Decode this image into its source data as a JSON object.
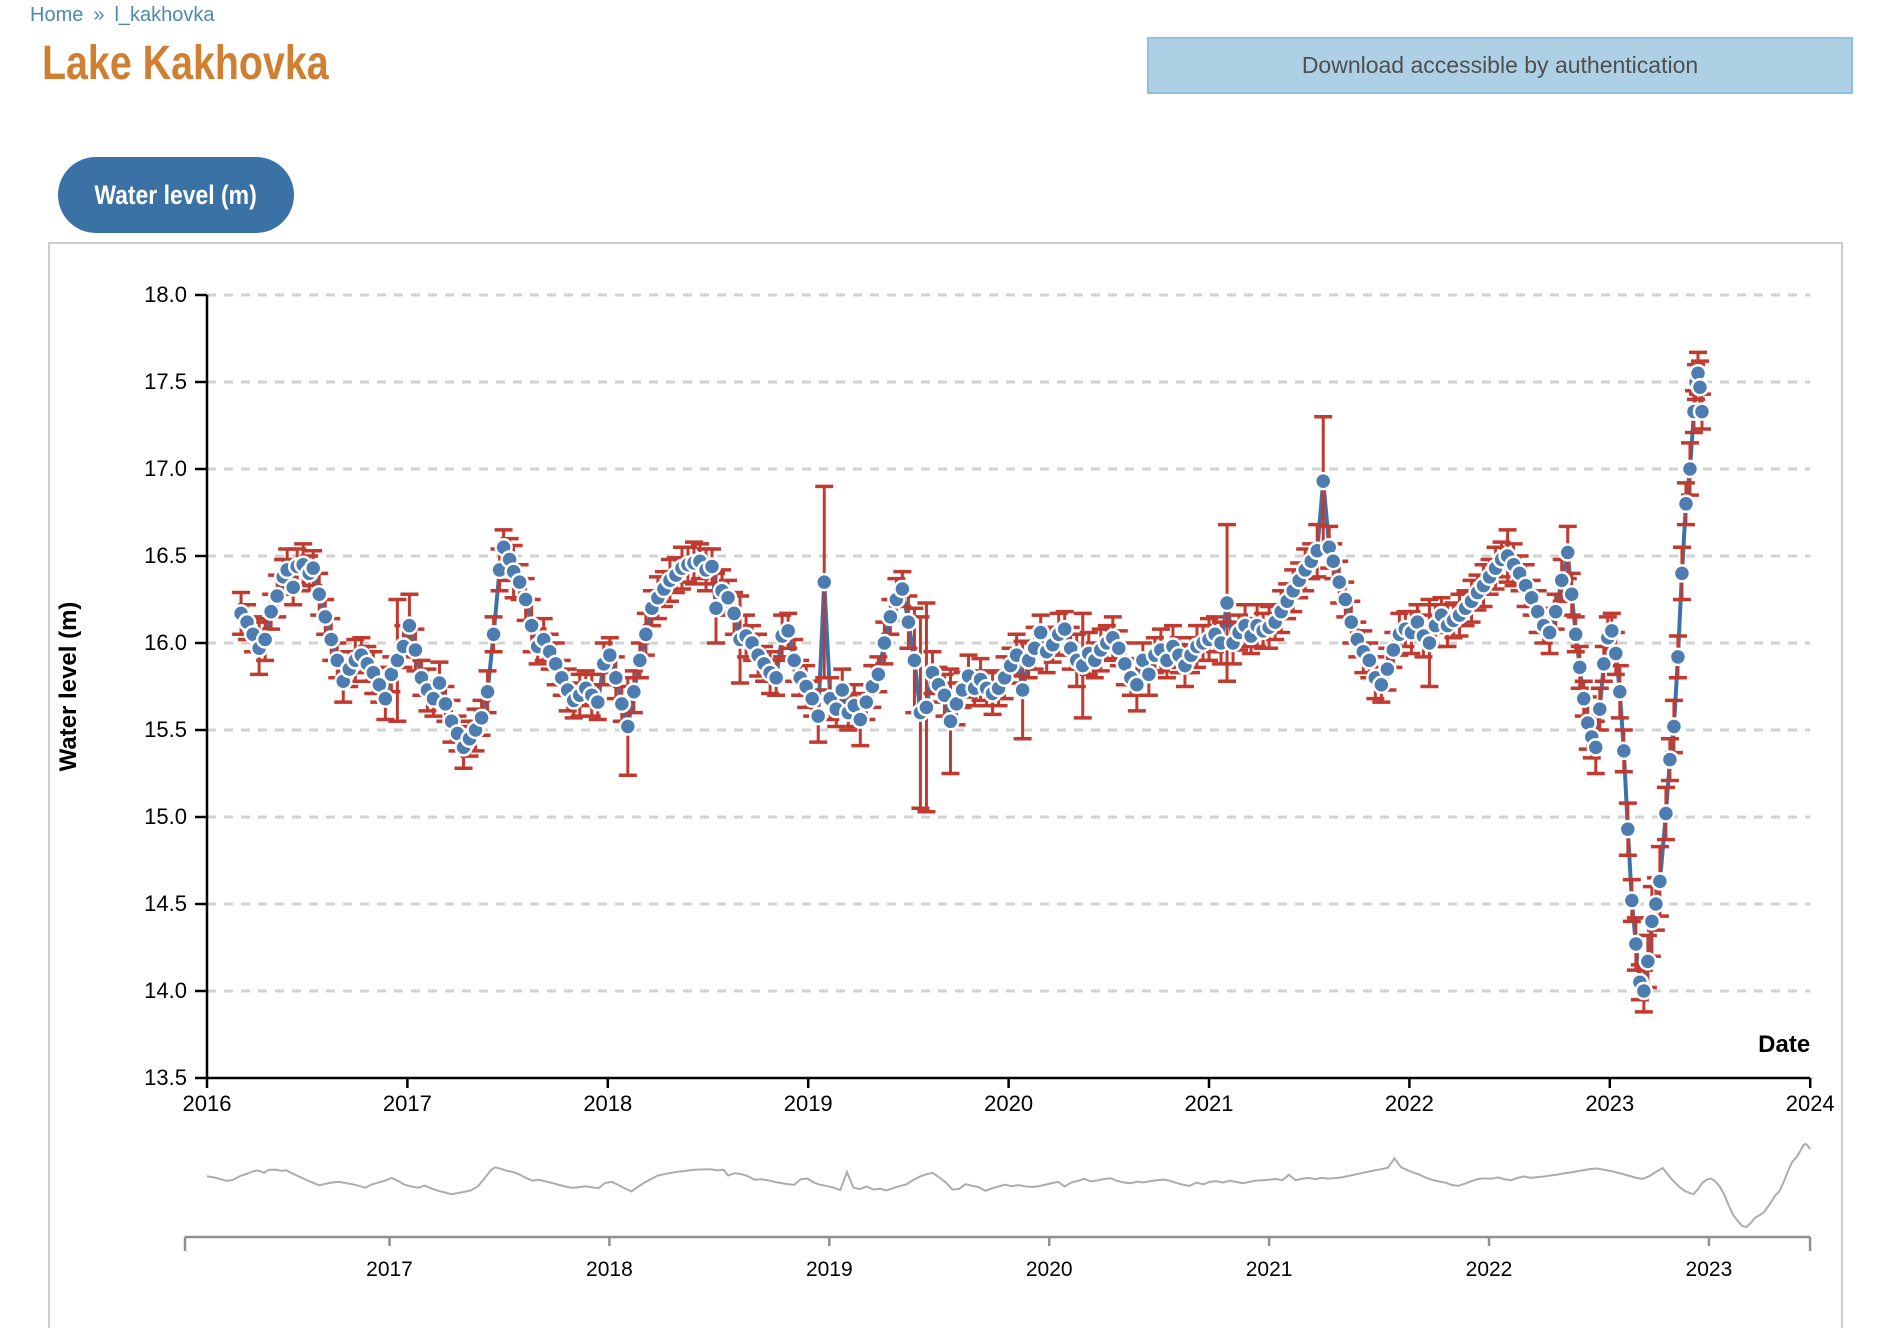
{
  "breadcrumb": {
    "home": "Home",
    "separator": "»",
    "current": "l_kakhovka"
  },
  "header": {
    "title": "Lake Kakhovka",
    "download_label": "Download accessible by authentication"
  },
  "series_button": {
    "label": "Water level (m)"
  },
  "chart_data": {
    "type": "scatter",
    "title": "",
    "xlabel": "Date",
    "ylabel": "Water level (m)",
    "xlim": [
      2016,
      2024
    ],
    "ylim": [
      13.5,
      18.0
    ],
    "x_ticks": [
      2016,
      2017,
      2018,
      2019,
      2020,
      2021,
      2022,
      2023,
      2024
    ],
    "y_ticks": [
      13.5,
      14.0,
      14.5,
      15.0,
      15.5,
      16.0,
      16.5,
      17.0,
      17.5,
      18.0
    ],
    "grid": "horizontal-dashed",
    "legend": "none",
    "series_name": "Water level (m)",
    "marker_color": "#4d7cb0",
    "marker_stroke": "#ffffff",
    "line_color": "#3c72aa",
    "errorbar_color": "#c13a30",
    "points_format": [
      "decimal_year",
      "water_level_m",
      "error_m"
    ],
    "points": [
      [
        2016.17,
        16.17,
        0.12
      ],
      [
        2016.2,
        16.12,
        0.1
      ],
      [
        2016.23,
        16.05,
        0.1
      ],
      [
        2016.26,
        15.97,
        0.15
      ],
      [
        2016.29,
        16.02,
        0.12
      ],
      [
        2016.32,
        16.18,
        0.1
      ],
      [
        2016.35,
        16.27,
        0.12
      ],
      [
        2016.38,
        16.38,
        0.1
      ],
      [
        2016.4,
        16.42,
        0.12
      ],
      [
        2016.43,
        16.32,
        0.1
      ],
      [
        2016.45,
        16.44,
        0.1
      ],
      [
        2016.48,
        16.45,
        0.12
      ],
      [
        2016.51,
        16.4,
        0.1
      ],
      [
        2016.53,
        16.43,
        0.1
      ],
      [
        2016.56,
        16.28,
        0.12
      ],
      [
        2016.59,
        16.15,
        0.1
      ],
      [
        2016.62,
        16.02,
        0.12
      ],
      [
        2016.65,
        15.9,
        0.1
      ],
      [
        2016.68,
        15.78,
        0.12
      ],
      [
        2016.71,
        15.85,
        0.1
      ],
      [
        2016.74,
        15.9,
        0.12
      ],
      [
        2016.77,
        15.93,
        0.1
      ],
      [
        2016.8,
        15.88,
        0.1
      ],
      [
        2016.83,
        15.83,
        0.12
      ],
      [
        2016.86,
        15.76,
        0.1
      ],
      [
        2016.89,
        15.68,
        0.12
      ],
      [
        2016.92,
        15.82,
        0.1
      ],
      [
        2016.95,
        15.9,
        0.35
      ],
      [
        2016.98,
        15.98,
        0.12
      ],
      [
        2017.01,
        16.1,
        0.18
      ],
      [
        2017.04,
        15.96,
        0.12
      ],
      [
        2017.07,
        15.8,
        0.1
      ],
      [
        2017.1,
        15.73,
        0.12
      ],
      [
        2017.13,
        15.68,
        0.1
      ],
      [
        2017.16,
        15.77,
        0.12
      ],
      [
        2017.19,
        15.65,
        0.1
      ],
      [
        2017.22,
        15.55,
        0.12
      ],
      [
        2017.25,
        15.48,
        0.1
      ],
      [
        2017.28,
        15.4,
        0.12
      ],
      [
        2017.31,
        15.45,
        0.1
      ],
      [
        2017.34,
        15.5,
        0.12
      ],
      [
        2017.37,
        15.57,
        0.1
      ],
      [
        2017.4,
        15.72,
        0.12
      ],
      [
        2017.43,
        16.05,
        0.1
      ],
      [
        2017.46,
        16.42,
        0.12
      ],
      [
        2017.48,
        16.55,
        0.1
      ],
      [
        2017.51,
        16.48,
        0.12
      ],
      [
        2017.53,
        16.41,
        0.15
      ],
      [
        2017.56,
        16.35,
        0.1
      ],
      [
        2017.59,
        16.25,
        0.12
      ],
      [
        2017.62,
        16.1,
        0.15
      ],
      [
        2017.65,
        15.98,
        0.1
      ],
      [
        2017.68,
        16.02,
        0.12
      ],
      [
        2017.71,
        15.95,
        0.1
      ],
      [
        2017.74,
        15.88,
        0.12
      ],
      [
        2017.77,
        15.8,
        0.1
      ],
      [
        2017.8,
        15.73,
        0.12
      ],
      [
        2017.83,
        15.67,
        0.1
      ],
      [
        2017.86,
        15.7,
        0.12
      ],
      [
        2017.89,
        15.74,
        0.1
      ],
      [
        2017.92,
        15.7,
        0.12
      ],
      [
        2017.95,
        15.66,
        0.1
      ],
      [
        2017.98,
        15.88,
        0.12
      ],
      [
        2018.01,
        15.93,
        0.1
      ],
      [
        2018.04,
        15.8,
        0.12
      ],
      [
        2018.07,
        15.65,
        0.1
      ],
      [
        2018.1,
        15.52,
        0.28
      ],
      [
        2018.13,
        15.72,
        0.12
      ],
      [
        2018.16,
        15.9,
        0.1
      ],
      [
        2018.19,
        16.05,
        0.12
      ],
      [
        2018.22,
        16.2,
        0.1
      ],
      [
        2018.25,
        16.26,
        0.12
      ],
      [
        2018.28,
        16.31,
        0.1
      ],
      [
        2018.31,
        16.36,
        0.12
      ],
      [
        2018.34,
        16.39,
        0.1
      ],
      [
        2018.37,
        16.43,
        0.12
      ],
      [
        2018.4,
        16.45,
        0.1
      ],
      [
        2018.43,
        16.46,
        0.12
      ],
      [
        2018.46,
        16.47,
        0.1
      ],
      [
        2018.49,
        16.42,
        0.12
      ],
      [
        2018.52,
        16.44,
        0.1
      ],
      [
        2018.54,
        16.2,
        0.2
      ],
      [
        2018.57,
        16.3,
        0.12
      ],
      [
        2018.6,
        16.26,
        0.1
      ],
      [
        2018.63,
        16.17,
        0.12
      ],
      [
        2018.66,
        16.02,
        0.25
      ],
      [
        2018.69,
        16.04,
        0.12
      ],
      [
        2018.72,
        16.0,
        0.1
      ],
      [
        2018.75,
        15.93,
        0.12
      ],
      [
        2018.78,
        15.88,
        0.1
      ],
      [
        2018.81,
        15.83,
        0.12
      ],
      [
        2018.84,
        15.8,
        0.1
      ],
      [
        2018.87,
        16.04,
        0.12
      ],
      [
        2018.9,
        16.07,
        0.1
      ],
      [
        2018.93,
        15.9,
        0.12
      ],
      [
        2018.96,
        15.8,
        0.1
      ],
      [
        2018.99,
        15.75,
        0.12
      ],
      [
        2019.02,
        15.68,
        0.1
      ],
      [
        2019.05,
        15.58,
        0.15
      ],
      [
        2019.08,
        16.35,
        0.55
      ],
      [
        2019.11,
        15.68,
        0.12
      ],
      [
        2019.14,
        15.62,
        0.1
      ],
      [
        2019.17,
        15.73,
        0.12
      ],
      [
        2019.2,
        15.6,
        0.1
      ],
      [
        2019.23,
        15.64,
        0.12
      ],
      [
        2019.26,
        15.56,
        0.15
      ],
      [
        2019.29,
        15.66,
        0.1
      ],
      [
        2019.32,
        15.75,
        0.12
      ],
      [
        2019.35,
        15.82,
        0.1
      ],
      [
        2019.38,
        16.0,
        0.12
      ],
      [
        2019.41,
        16.15,
        0.1
      ],
      [
        2019.44,
        16.25,
        0.12
      ],
      [
        2019.47,
        16.31,
        0.1
      ],
      [
        2019.5,
        16.12,
        0.15
      ],
      [
        2019.53,
        15.9,
        0.3
      ],
      [
        2019.56,
        15.6,
        0.55
      ],
      [
        2019.59,
        15.63,
        0.6
      ],
      [
        2019.62,
        15.83,
        0.12
      ],
      [
        2019.65,
        15.76,
        0.1
      ],
      [
        2019.68,
        15.7,
        0.12
      ],
      [
        2019.71,
        15.55,
        0.3
      ],
      [
        2019.74,
        15.65,
        0.12
      ],
      [
        2019.77,
        15.73,
        0.1
      ],
      [
        2019.8,
        15.81,
        0.12
      ],
      [
        2019.83,
        15.74,
        0.1
      ],
      [
        2019.86,
        15.79,
        0.12
      ],
      [
        2019.89,
        15.74,
        0.1
      ],
      [
        2019.92,
        15.71,
        0.12
      ],
      [
        2019.95,
        15.74,
        0.1
      ],
      [
        2019.98,
        15.8,
        0.12
      ],
      [
        2020.01,
        15.87,
        0.1
      ],
      [
        2020.04,
        15.93,
        0.12
      ],
      [
        2020.07,
        15.73,
        0.28
      ],
      [
        2020.1,
        15.9,
        0.1
      ],
      [
        2020.13,
        15.97,
        0.12
      ],
      [
        2020.16,
        16.06,
        0.1
      ],
      [
        2020.19,
        15.95,
        0.12
      ],
      [
        2020.22,
        15.99,
        0.1
      ],
      [
        2020.25,
        16.05,
        0.12
      ],
      [
        2020.28,
        16.08,
        0.1
      ],
      [
        2020.31,
        15.97,
        0.12
      ],
      [
        2020.34,
        15.9,
        0.15
      ],
      [
        2020.37,
        15.87,
        0.3
      ],
      [
        2020.4,
        15.94,
        0.12
      ],
      [
        2020.43,
        15.9,
        0.1
      ],
      [
        2020.46,
        15.96,
        0.12
      ],
      [
        2020.49,
        16.0,
        0.1
      ],
      [
        2020.52,
        16.03,
        0.12
      ],
      [
        2020.55,
        15.97,
        0.1
      ],
      [
        2020.58,
        15.88,
        0.12
      ],
      [
        2020.61,
        15.8,
        0.1
      ],
      [
        2020.64,
        15.76,
        0.15
      ],
      [
        2020.67,
        15.9,
        0.1
      ],
      [
        2020.7,
        15.82,
        0.12
      ],
      [
        2020.73,
        15.93,
        0.1
      ],
      [
        2020.76,
        15.96,
        0.12
      ],
      [
        2020.79,
        15.9,
        0.1
      ],
      [
        2020.82,
        15.98,
        0.12
      ],
      [
        2020.85,
        15.93,
        0.1
      ],
      [
        2020.88,
        15.87,
        0.12
      ],
      [
        2020.91,
        15.93,
        0.1
      ],
      [
        2020.94,
        15.98,
        0.12
      ],
      [
        2020.97,
        16.0,
        0.1
      ],
      [
        2021.0,
        16.02,
        0.12
      ],
      [
        2021.03,
        16.05,
        0.1
      ],
      [
        2021.06,
        16.0,
        0.12
      ],
      [
        2021.09,
        16.23,
        0.45
      ],
      [
        2021.12,
        16.0,
        0.12
      ],
      [
        2021.15,
        16.06,
        0.1
      ],
      [
        2021.18,
        16.1,
        0.12
      ],
      [
        2021.21,
        16.04,
        0.1
      ],
      [
        2021.24,
        16.1,
        0.12
      ],
      [
        2021.27,
        16.07,
        0.1
      ],
      [
        2021.3,
        16.09,
        0.12
      ],
      [
        2021.33,
        16.12,
        0.1
      ],
      [
        2021.36,
        16.18,
        0.12
      ],
      [
        2021.39,
        16.24,
        0.1
      ],
      [
        2021.42,
        16.3,
        0.12
      ],
      [
        2021.45,
        16.36,
        0.1
      ],
      [
        2021.48,
        16.42,
        0.12
      ],
      [
        2021.51,
        16.47,
        0.1
      ],
      [
        2021.54,
        16.53,
        0.15
      ],
      [
        2021.57,
        16.93,
        0.37
      ],
      [
        2021.6,
        16.55,
        0.12
      ],
      [
        2021.62,
        16.47,
        0.1
      ],
      [
        2021.65,
        16.35,
        0.12
      ],
      [
        2021.68,
        16.25,
        0.1
      ],
      [
        2021.71,
        16.12,
        0.12
      ],
      [
        2021.74,
        16.02,
        0.1
      ],
      [
        2021.77,
        15.95,
        0.12
      ],
      [
        2021.8,
        15.9,
        0.1
      ],
      [
        2021.83,
        15.8,
        0.12
      ],
      [
        2021.86,
        15.76,
        0.1
      ],
      [
        2021.89,
        15.85,
        0.12
      ],
      [
        2021.92,
        15.96,
        0.1
      ],
      [
        2021.95,
        16.05,
        0.12
      ],
      [
        2021.98,
        16.08,
        0.1
      ],
      [
        2022.01,
        16.06,
        0.12
      ],
      [
        2022.04,
        16.12,
        0.1
      ],
      [
        2022.07,
        16.04,
        0.12
      ],
      [
        2022.1,
        16.0,
        0.25
      ],
      [
        2022.13,
        16.1,
        0.12
      ],
      [
        2022.16,
        16.16,
        0.1
      ],
      [
        2022.19,
        16.1,
        0.12
      ],
      [
        2022.22,
        16.13,
        0.1
      ],
      [
        2022.25,
        16.16,
        0.12
      ],
      [
        2022.28,
        16.2,
        0.1
      ],
      [
        2022.31,
        16.24,
        0.12
      ],
      [
        2022.34,
        16.29,
        0.1
      ],
      [
        2022.37,
        16.33,
        0.12
      ],
      [
        2022.4,
        16.38,
        0.1
      ],
      [
        2022.43,
        16.43,
        0.12
      ],
      [
        2022.46,
        16.48,
        0.1
      ],
      [
        2022.49,
        16.5,
        0.15
      ],
      [
        2022.52,
        16.45,
        0.12
      ],
      [
        2022.55,
        16.4,
        0.1
      ],
      [
        2022.58,
        16.33,
        0.12
      ],
      [
        2022.61,
        16.26,
        0.1
      ],
      [
        2022.64,
        16.18,
        0.12
      ],
      [
        2022.67,
        16.1,
        0.1
      ],
      [
        2022.7,
        16.06,
        0.12
      ],
      [
        2022.73,
        16.18,
        0.1
      ],
      [
        2022.76,
        16.36,
        0.12
      ],
      [
        2022.79,
        16.52,
        0.15
      ],
      [
        2022.81,
        16.28,
        0.12
      ],
      [
        2022.83,
        16.05,
        0.1
      ],
      [
        2022.85,
        15.86,
        0.12
      ],
      [
        2022.87,
        15.68,
        0.1
      ],
      [
        2022.89,
        15.54,
        0.15
      ],
      [
        2022.91,
        15.46,
        0.12
      ],
      [
        2022.93,
        15.4,
        0.15
      ],
      [
        2022.95,
        15.62,
        0.12
      ],
      [
        2022.97,
        15.88,
        0.1
      ],
      [
        2022.99,
        16.03,
        0.12
      ],
      [
        2023.01,
        16.07,
        0.1
      ],
      [
        2023.03,
        15.94,
        0.12
      ],
      [
        2023.05,
        15.72,
        0.15
      ],
      [
        2023.07,
        15.38,
        0.12
      ],
      [
        2023.09,
        14.93,
        0.15
      ],
      [
        2023.11,
        14.52,
        0.12
      ],
      [
        2023.13,
        14.27,
        0.15
      ],
      [
        2023.15,
        14.05,
        0.1
      ],
      [
        2023.17,
        14.0,
        0.12
      ],
      [
        2023.19,
        14.17,
        0.15
      ],
      [
        2023.21,
        14.4,
        0.2
      ],
      [
        2023.23,
        14.5,
        0.15
      ],
      [
        2023.25,
        14.63,
        0.2
      ],
      [
        2023.28,
        15.02,
        0.15
      ],
      [
        2023.3,
        15.33,
        0.12
      ],
      [
        2023.32,
        15.52,
        0.15
      ],
      [
        2023.34,
        15.92,
        0.12
      ],
      [
        2023.36,
        16.4,
        0.15
      ],
      [
        2023.38,
        16.8,
        0.12
      ],
      [
        2023.4,
        17.0,
        0.15
      ],
      [
        2023.42,
        17.33,
        0.12
      ],
      [
        2023.43,
        17.5,
        0.1
      ],
      [
        2023.44,
        17.55,
        0.12
      ],
      [
        2023.45,
        17.47,
        0.15
      ],
      [
        2023.46,
        17.33,
        0.1
      ]
    ]
  },
  "navigator": {
    "x_ticks": [
      2017,
      2018,
      2019,
      2020,
      2021,
      2022,
      2023
    ],
    "xlim": [
      2016.07,
      2023.46
    ],
    "ylim": [
      14.0,
      17.55
    ],
    "line_color": "#adadad",
    "axis_color": "#909090"
  }
}
